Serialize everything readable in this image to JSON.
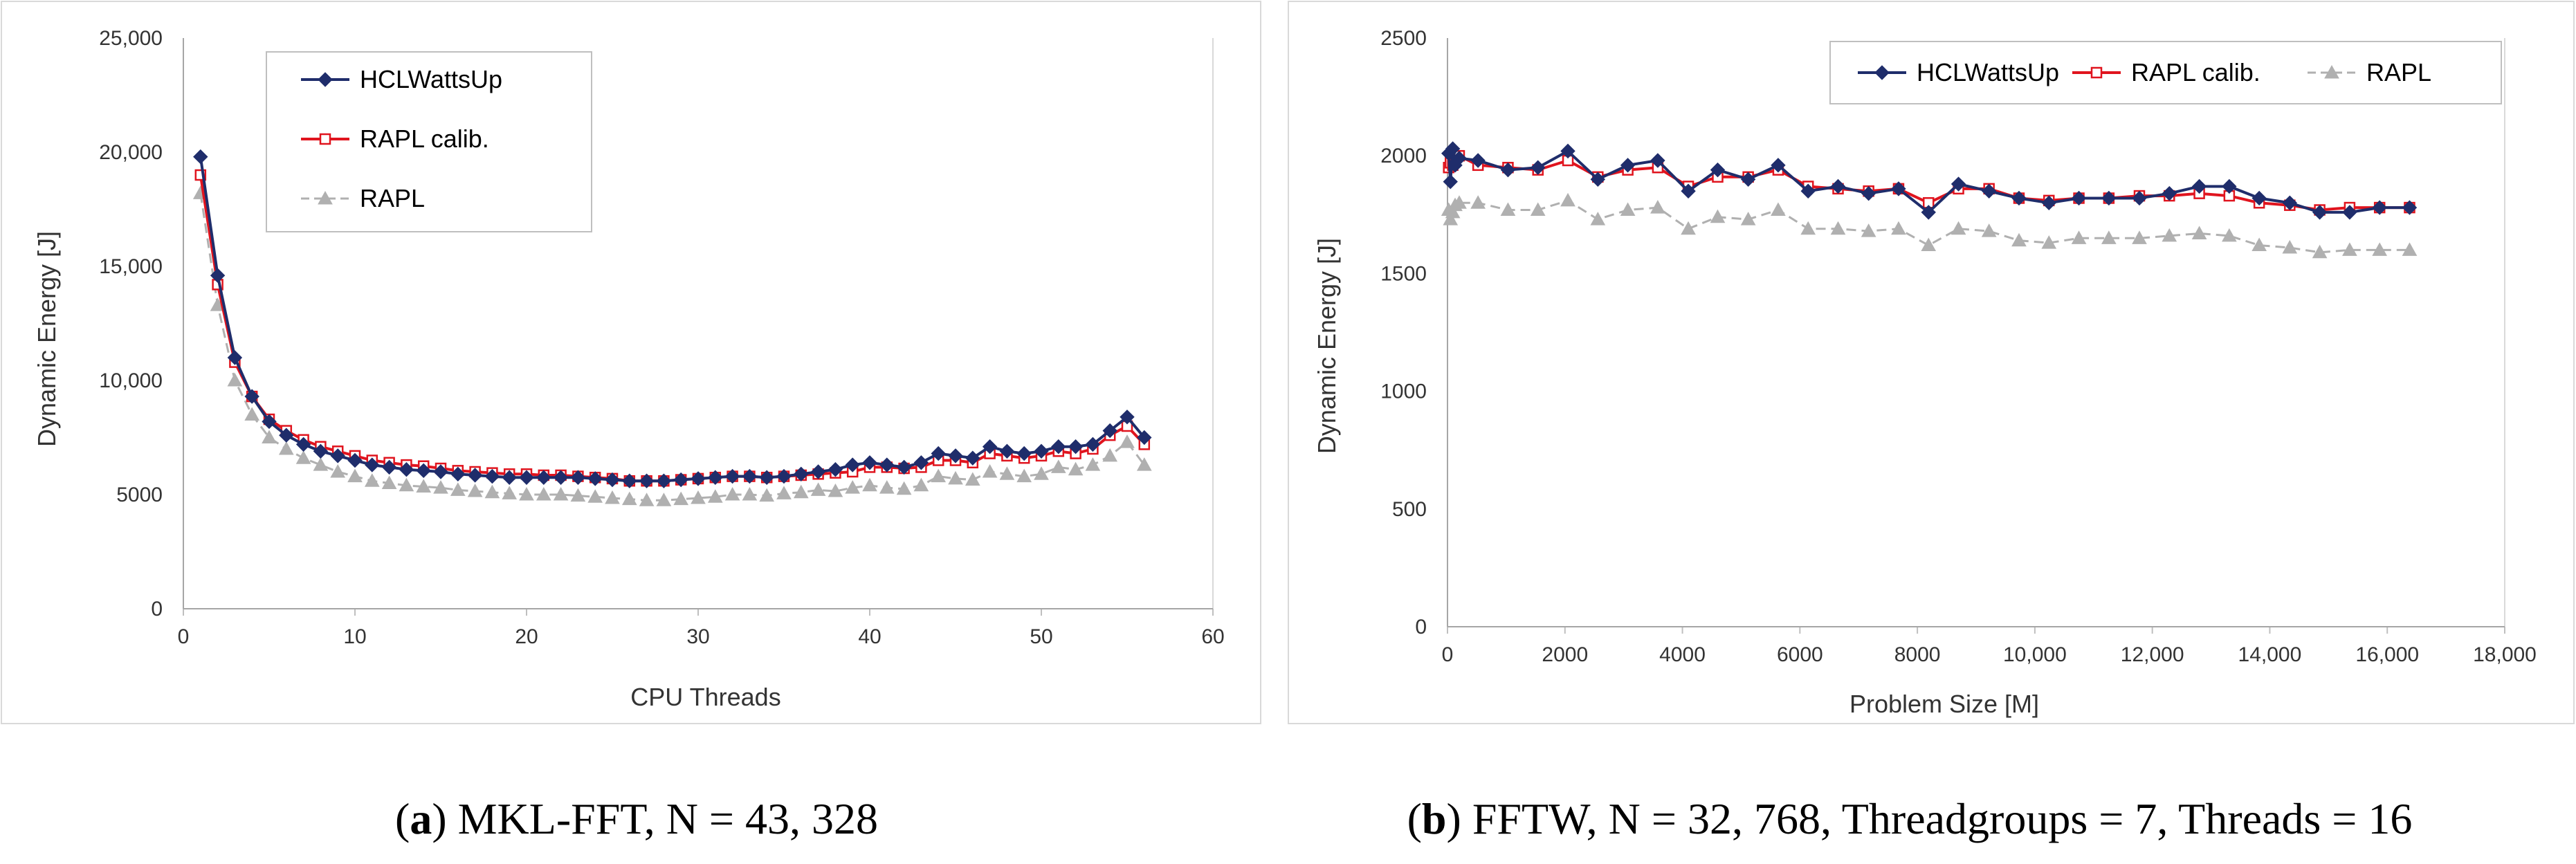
{
  "chart_data": [
    {
      "type": "line",
      "caption": {
        "letter": "a",
        "text": "MKL-FFT, N = 43, 328"
      },
      "xlabel": "CPU Threads",
      "ylabel": "Dynamic Energy [J]",
      "xlim": [
        0,
        60
      ],
      "ylim": [
        0,
        25000
      ],
      "xticks": [
        0,
        10,
        20,
        30,
        40,
        50,
        60
      ],
      "xtick_labels": [
        "0",
        "10",
        "20",
        "30",
        "40",
        "50",
        "60"
      ],
      "yticks": [
        0,
        5000,
        10000,
        15000,
        20000,
        25000
      ],
      "ytick_labels": [
        "0",
        "5000",
        "10,000",
        "15,000",
        "20,000",
        "25,000"
      ],
      "legend": {
        "placement": "top-left",
        "entries": [
          "HCLWattsUp",
          "RAPL calib.",
          "RAPL"
        ]
      },
      "x": [
        1,
        2,
        3,
        4,
        5,
        6,
        7,
        8,
        9,
        10,
        11,
        12,
        13,
        14,
        15,
        16,
        17,
        18,
        19,
        20,
        21,
        22,
        23,
        24,
        25,
        26,
        27,
        28,
        29,
        30,
        31,
        32,
        33,
        34,
        35,
        36,
        37,
        38,
        39,
        40,
        41,
        42,
        43,
        44,
        45,
        46,
        47,
        48,
        49,
        50,
        51,
        52,
        53,
        54,
        55,
        56
      ],
      "series": [
        {
          "name": "HCLWattsUp",
          "color": "#1f2d6b",
          "marker": "diamond",
          "values": [
            19800,
            14600,
            11000,
            9300,
            8200,
            7600,
            7200,
            6900,
            6700,
            6500,
            6300,
            6200,
            6100,
            6050,
            6000,
            5900,
            5850,
            5800,
            5750,
            5750,
            5750,
            5750,
            5750,
            5700,
            5650,
            5600,
            5600,
            5600,
            5650,
            5700,
            5750,
            5800,
            5800,
            5750,
            5800,
            5900,
            6000,
            6100,
            6300,
            6400,
            6300,
            6200,
            6400,
            6800,
            6700,
            6600,
            7100,
            6900,
            6800,
            6900,
            7100,
            7100,
            7200,
            7800,
            8400,
            7500
          ]
        },
        {
          "name": "RAPL calib.",
          "color": "#e0141e",
          "marker": "square",
          "values": [
            19000,
            14200,
            10800,
            9300,
            8300,
            7800,
            7400,
            7100,
            6900,
            6700,
            6500,
            6400,
            6300,
            6250,
            6150,
            6050,
            6000,
            5950,
            5900,
            5900,
            5850,
            5850,
            5800,
            5750,
            5700,
            5600,
            5600,
            5600,
            5650,
            5700,
            5750,
            5800,
            5800,
            5750,
            5800,
            5850,
            5900,
            5950,
            6000,
            6200,
            6200,
            6150,
            6200,
            6500,
            6500,
            6400,
            6800,
            6700,
            6600,
            6700,
            6900,
            6800,
            7000,
            7600,
            8000,
            7200
          ]
        },
        {
          "name": "RAPL",
          "color": "#b0b0b0",
          "marker": "triangle",
          "dashed": true,
          "values": [
            18200,
            13300,
            10000,
            8500,
            7500,
            7000,
            6600,
            6300,
            6000,
            5800,
            5600,
            5500,
            5400,
            5350,
            5300,
            5200,
            5150,
            5100,
            5050,
            5000,
            5000,
            5000,
            4950,
            4900,
            4850,
            4800,
            4750,
            4750,
            4800,
            4850,
            4900,
            5000,
            5000,
            4950,
            5050,
            5100,
            5200,
            5150,
            5300,
            5400,
            5300,
            5250,
            5400,
            5800,
            5700,
            5650,
            6000,
            5900,
            5800,
            5900,
            6200,
            6100,
            6300,
            6700,
            7300,
            6300
          ]
        }
      ]
    },
    {
      "type": "line",
      "caption": {
        "letter": "b",
        "text": "FFTW, N = 32, 768, Threadgroups = 7, Threads = 16"
      },
      "xlabel": "Problem Size [M]",
      "ylabel": "Dynamic Energy [J]",
      "xlim": [
        0,
        18000
      ],
      "ylim": [
        0,
        2500
      ],
      "xticks": [
        0,
        2000,
        4000,
        6000,
        8000,
        10000,
        12000,
        14000,
        16000,
        18000
      ],
      "xtick_labels": [
        "0",
        "2000",
        "4000",
        "6000",
        "8000",
        "10,000",
        "12,000",
        "14,000",
        "16,000",
        "18,000"
      ],
      "yticks": [
        0,
        500,
        1000,
        1500,
        2000,
        2500
      ],
      "ytick_labels": [
        "0",
        "500",
        "1000",
        "1500",
        "2000",
        "2500"
      ],
      "legend": {
        "placement": "top-right",
        "entries": [
          "HCLWattsUp",
          "RAPL calib.",
          "RAPL"
        ]
      },
      "x": [
        20,
        50,
        90,
        130,
        200,
        520,
        1030,
        1540,
        2050,
        2560,
        3070,
        3580,
        4100,
        4600,
        5120,
        5630,
        6140,
        6650,
        7170,
        7680,
        8190,
        8700,
        9220,
        9730,
        10240,
        10750,
        11260,
        11780,
        12290,
        12800,
        13310,
        13820,
        14340,
        14850,
        15360,
        15870,
        16380
      ],
      "series": [
        {
          "name": "HCLWattsUp",
          "color": "#1f2d6b",
          "marker": "diamond",
          "values": [
            2010,
            1890,
            2030,
            1960,
            1990,
            1980,
            1940,
            1950,
            2020,
            1900,
            1960,
            1980,
            1850,
            1940,
            1900,
            1960,
            1850,
            1870,
            1840,
            1860,
            1760,
            1880,
            1850,
            1820,
            1800,
            1820,
            1820,
            1820,
            1840,
            1870,
            1870,
            1820,
            1800,
            1760,
            1760,
            1780,
            1780
          ]
        },
        {
          "name": "RAPL calib.",
          "color": "#e0141e",
          "marker": "square",
          "values": [
            1950,
            1970,
            1960,
            1980,
            2000,
            1960,
            1950,
            1940,
            1980,
            1910,
            1940,
            1950,
            1870,
            1910,
            1910,
            1940,
            1870,
            1860,
            1850,
            1860,
            1800,
            1860,
            1860,
            1820,
            1810,
            1820,
            1820,
            1830,
            1830,
            1840,
            1830,
            1800,
            1790,
            1770,
            1780,
            1780,
            1780
          ]
        },
        {
          "name": "RAPL",
          "color": "#b0b0b0",
          "marker": "triangle",
          "dashed": true,
          "values": [
            1770,
            1730,
            1760,
            1790,
            1800,
            1800,
            1770,
            1770,
            1810,
            1730,
            1770,
            1780,
            1690,
            1740,
            1730,
            1770,
            1690,
            1690,
            1680,
            1690,
            1620,
            1690,
            1680,
            1640,
            1630,
            1650,
            1650,
            1650,
            1660,
            1670,
            1660,
            1620,
            1610,
            1590,
            1600,
            1600,
            1600
          ]
        }
      ]
    }
  ]
}
